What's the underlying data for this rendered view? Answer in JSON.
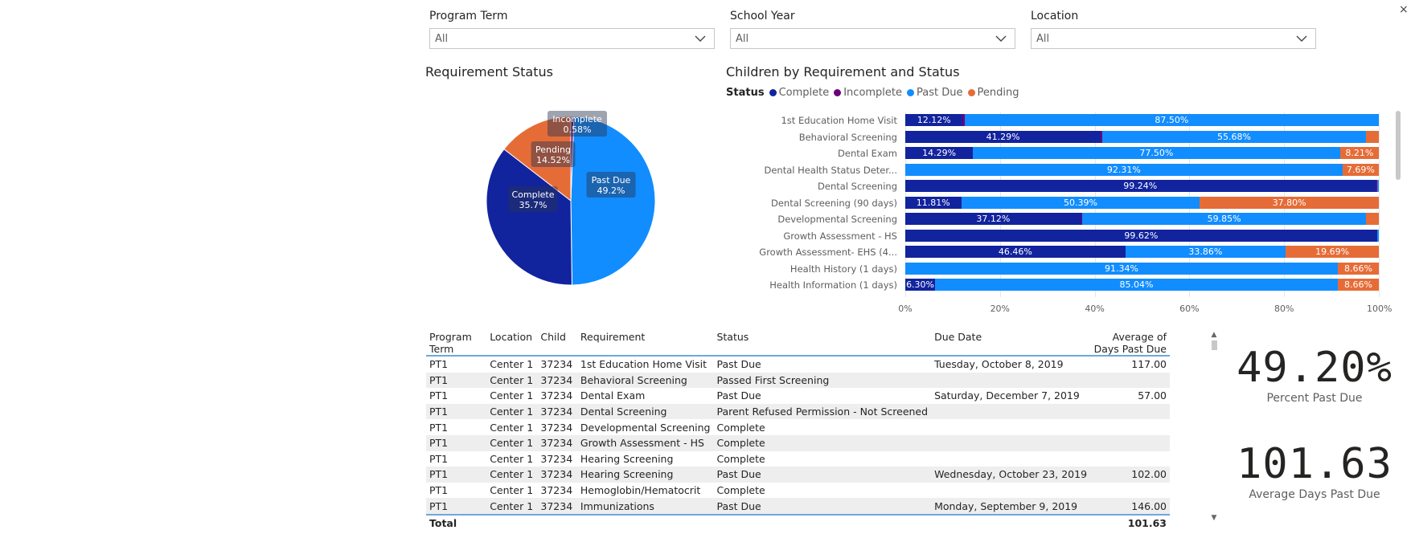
{
  "slicers": [
    {
      "title": "Program Term",
      "value": "All"
    },
    {
      "title": "School Year",
      "value": "All"
    },
    {
      "title": "Location",
      "value": "All"
    }
  ],
  "close_glyph": "×",
  "pie": {
    "title": "Requirement Status",
    "chart_data": {
      "type": "pie",
      "slices": [
        {
          "name": "Past Due",
          "value": 49.2,
          "label": "49.2%",
          "color": "#118dff"
        },
        {
          "name": "Complete",
          "value": 35.7,
          "label": "35.7%",
          "color": "#12239e"
        },
        {
          "name": "Pending",
          "value": 14.52,
          "label": "14.52%",
          "color": "#e66c37"
        },
        {
          "name": "Incomplete",
          "value": 0.58,
          "label": "0.58%",
          "color": "#6b007b"
        }
      ]
    }
  },
  "bar": {
    "title": "Children by Requirement and Status",
    "legend_title": "Status",
    "chart_data": {
      "type": "bar",
      "orientation": "horizontal",
      "stacked": "100%",
      "legend": [
        "Complete",
        "Incomplete",
        "Past Due",
        "Pending"
      ],
      "colors": {
        "Complete": "#12239e",
        "Incomplete": "#6b007b",
        "Past Due": "#118dff",
        "Pending": "#e66c37"
      },
      "xlim": [
        0,
        100
      ],
      "xticks": [
        "0%",
        "20%",
        "40%",
        "60%",
        "80%",
        "100%"
      ],
      "categories": [
        "1st Education Home Visit",
        "Behavioral Screening",
        "Dental Exam",
        "Dental Health Status Deter...",
        "Dental Screening",
        "Dental Screening (90 days)",
        "Developmental Screening",
        "Growth Assessment - HS",
        "Growth Assessment- EHS (4...",
        "Health History (1 days)",
        "Health Information (1 days)"
      ],
      "series": [
        {
          "name": "Complete",
          "values": [
            12.12,
            41.29,
            14.29,
            0,
            99.24,
            11.81,
            37.12,
            99.62,
            46.46,
            0,
            6.3
          ]
        },
        {
          "name": "Incomplete",
          "values": [
            0.38,
            0.3,
            0,
            0,
            0.5,
            0,
            0.3,
            0,
            0,
            0,
            0
          ]
        },
        {
          "name": "Past Due",
          "values": [
            87.5,
            55.68,
            77.5,
            92.31,
            0.26,
            50.39,
            59.85,
            0.38,
            33.86,
            91.34,
            85.04
          ]
        },
        {
          "name": "Pending",
          "values": [
            0,
            2.73,
            8.21,
            7.69,
            0,
            37.8,
            2.73,
            0,
            19.69,
            8.66,
            8.66
          ]
        }
      ],
      "data_labels": [
        [
          "12.12%",
          "",
          "87.50%",
          ""
        ],
        [
          "41.29%",
          "",
          "55.68%",
          ""
        ],
        [
          "14.29%",
          "",
          "77.50%",
          "8.21%"
        ],
        [
          "",
          "",
          "92.31%",
          "7.69%"
        ],
        [
          "99.24%",
          "",
          "",
          ""
        ],
        [
          "11.81%",
          "",
          "50.39%",
          "37.80%"
        ],
        [
          "37.12%",
          "",
          "59.85%",
          ""
        ],
        [
          "99.62%",
          "",
          "",
          ""
        ],
        [
          "46.46%",
          "",
          "33.86%",
          "19.69%"
        ],
        [
          "",
          "",
          "91.34%",
          "8.66%"
        ],
        [
          "6.30%",
          "",
          "85.04%",
          "8.66%"
        ]
      ]
    }
  },
  "table": {
    "columns": [
      "Program Term",
      "Location",
      "Child",
      "Requirement",
      "Status",
      "Due Date",
      "Average of Days Past Due"
    ],
    "rows": [
      [
        "PT1",
        "Center 1",
        "37234",
        "1st Education Home Visit",
        "Past Due",
        "Tuesday, October 8, 2019",
        "117.00"
      ],
      [
        "PT1",
        "Center 1",
        "37234",
        "Behavioral Screening",
        "Passed First Screening",
        "",
        ""
      ],
      [
        "PT1",
        "Center 1",
        "37234",
        "Dental Exam",
        "Past Due",
        "Saturday, December 7, 2019",
        "57.00"
      ],
      [
        "PT1",
        "Center 1",
        "37234",
        "Dental Screening",
        "Parent Refused Permission - Not Screened",
        "",
        ""
      ],
      [
        "PT1",
        "Center 1",
        "37234",
        "Developmental Screening",
        "Complete",
        "",
        ""
      ],
      [
        "PT1",
        "Center 1",
        "37234",
        "Growth Assessment - HS",
        "Complete",
        "",
        ""
      ],
      [
        "PT1",
        "Center 1",
        "37234",
        "Hearing Screening",
        "Complete",
        "",
        ""
      ],
      [
        "PT1",
        "Center 1",
        "37234",
        "Hearing Screening",
        "Past Due",
        "Wednesday, October 23, 2019",
        "102.00"
      ],
      [
        "PT1",
        "Center 1",
        "37234",
        "Hemoglobin/Hematocrit",
        "Complete",
        "",
        ""
      ],
      [
        "PT1",
        "Center 1",
        "37234",
        "Immunizations",
        "Past Due",
        "Monday, September 9, 2019",
        "146.00"
      ]
    ],
    "total_label": "Total",
    "total_value": "101.63"
  },
  "kpis": [
    {
      "value": "49.20%",
      "label": "Percent Past Due"
    },
    {
      "value": "101.63",
      "label": "Average Days Past Due"
    }
  ]
}
